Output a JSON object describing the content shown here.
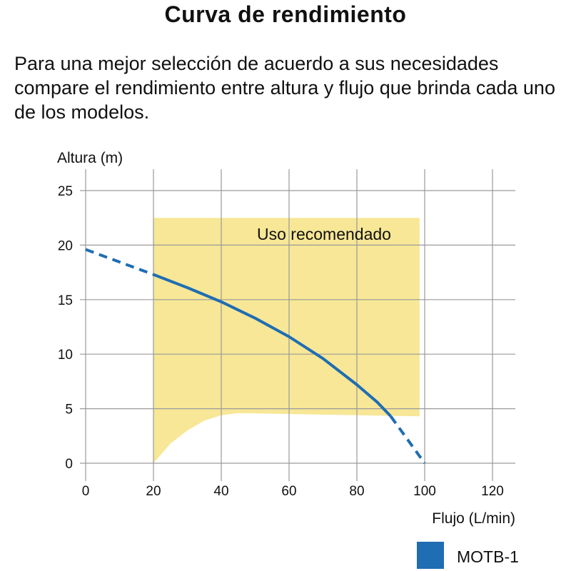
{
  "chart_data": {
    "type": "line",
    "title": "Curva de rendimiento",
    "subtitle": "Para una mejor selección de acuerdo a sus necesidades compare el rendimiento entre altura y flujo que brinda cada uno de los modelos.",
    "xlabel": "Flujo (L/min)",
    "ylabel": "Altura (m)",
    "xlim": [
      0,
      120
    ],
    "ylim": [
      0,
      25
    ],
    "xticks": [
      0,
      20,
      40,
      60,
      80,
      100,
      120
    ],
    "yticks": [
      0,
      5,
      10,
      15,
      20,
      25
    ],
    "grid": true,
    "legend_position": "bottom-right",
    "series": [
      {
        "name": "MOTB-1",
        "color": "#1f6db3",
        "dashed_start": [
          [
            0,
            19.6
          ],
          [
            20,
            17.3
          ]
        ],
        "solid": [
          [
            20,
            17.3
          ],
          [
            30,
            16.1
          ],
          [
            40,
            14.8
          ],
          [
            50,
            13.3
          ],
          [
            60,
            11.6
          ],
          [
            70,
            9.6
          ],
          [
            80,
            7.2
          ],
          [
            86,
            5.6
          ],
          [
            90,
            4.3
          ]
        ],
        "dashed_end": [
          [
            90,
            4.3
          ],
          [
            100,
            0
          ]
        ]
      }
    ],
    "region": {
      "label": "Uso recomendado",
      "color": "#f7e796",
      "top": 22.5,
      "x_range": [
        20,
        98.5
      ],
      "bottom": [
        [
          20,
          0
        ],
        [
          25,
          1.8
        ],
        [
          30,
          3.0
        ],
        [
          35,
          3.9
        ],
        [
          40,
          4.4
        ],
        [
          45,
          4.6
        ],
        [
          98.5,
          4.3
        ]
      ]
    }
  }
}
